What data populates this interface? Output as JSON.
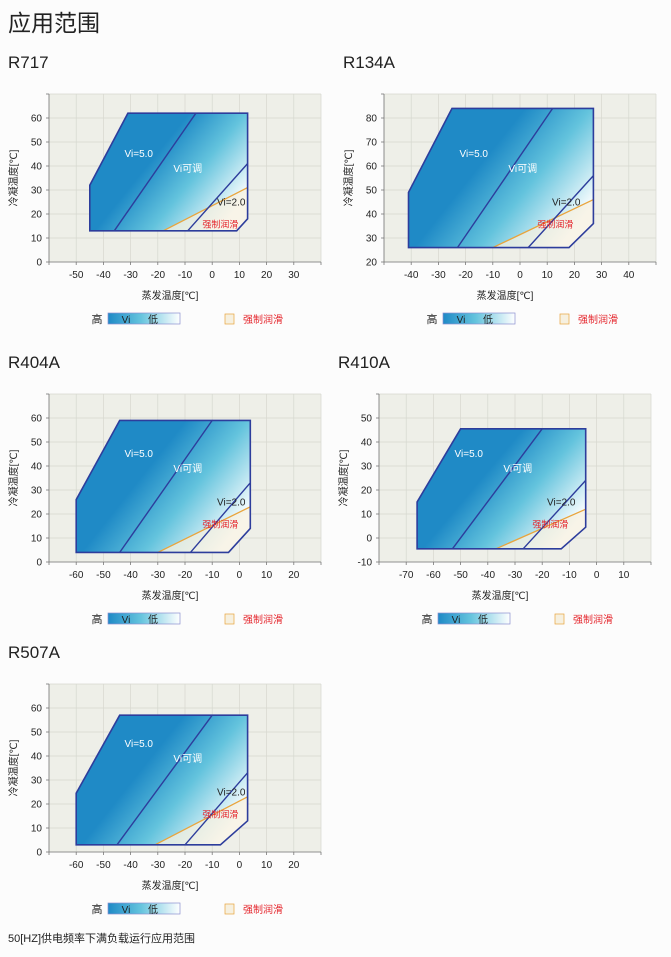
{
  "page_title": "应用范围",
  "footer": "50[HZ]供电频率下满负载运行应用范围",
  "colors": {
    "plot_bg": "#eeefe8",
    "grid": "#d6d7cf",
    "outline": "#2d3d9c",
    "vi_high": "#1f8ac6",
    "vi_mid": "#63c3dd",
    "vi_low": "#ffffff",
    "lube_line": "#e9a43c",
    "lube_fill": "#f6f0e0",
    "lube_text": "#e5262d"
  },
  "legend": {
    "high": "高",
    "vi": "Vi",
    "low": "低",
    "lube": "强制润滑"
  },
  "annotations": {
    "vi5": "Vi=5.0",
    "vi_adj": "Vi可调",
    "vi2": "Vi=2.0",
    "lube": "强制润滑"
  },
  "chart_data": [
    {
      "type": "area",
      "title": "R717",
      "xlabel": "蒸发温度[℃]",
      "ylabel": "冷凝温度[℃]",
      "grid": true,
      "xlim": [
        -60,
        40
      ],
      "ylim": [
        0,
        70
      ],
      "xticks": [
        -50,
        -40,
        -30,
        -20,
        -10,
        0,
        10,
        20,
        30
      ],
      "yticks": [
        0,
        10,
        20,
        30,
        40,
        50,
        60
      ],
      "envelope": [
        [
          -45,
          13
        ],
        [
          -45,
          32
        ],
        [
          -31,
          62
        ],
        [
          13,
          62
        ],
        [
          13,
          18
        ],
        [
          9,
          13
        ]
      ],
      "vi5_line": [
        [
          -36,
          13
        ],
        [
          -6,
          62
        ]
      ],
      "vi2_line": [
        [
          -9,
          13
        ],
        [
          13,
          41
        ]
      ],
      "lube_line": [
        [
          -18,
          13
        ],
        [
          13,
          31
        ]
      ]
    },
    {
      "type": "area",
      "title": "R134A",
      "xlabel": "蒸发温度[℃]",
      "ylabel": "冷凝温度[℃]",
      "grid": true,
      "xlim": [
        -50,
        50
      ],
      "ylim": [
        20,
        90
      ],
      "xticks": [
        -40,
        -30,
        -20,
        -10,
        0,
        10,
        20,
        30,
        40
      ],
      "yticks": [
        20,
        30,
        40,
        50,
        60,
        70,
        80
      ],
      "envelope": [
        [
          -41,
          26
        ],
        [
          -41,
          49
        ],
        [
          -25,
          84
        ],
        [
          27,
          84
        ],
        [
          27,
          36
        ],
        [
          18,
          26
        ]
      ],
      "vi5_line": [
        [
          -23,
          26
        ],
        [
          12,
          84
        ]
      ],
      "vi2_line": [
        [
          3,
          26
        ],
        [
          27,
          56
        ]
      ],
      "lube_line": [
        [
          -10,
          26
        ],
        [
          27,
          46
        ]
      ]
    },
    {
      "type": "area",
      "title": "R404A",
      "xlabel": "蒸发温度[℃]",
      "ylabel": "冷凝温度[℃]",
      "grid": true,
      "xlim": [
        -70,
        30
      ],
      "ylim": [
        0,
        70
      ],
      "xticks": [
        -60,
        -50,
        -40,
        -30,
        -20,
        -10,
        0,
        10,
        20
      ],
      "yticks": [
        0,
        10,
        20,
        30,
        40,
        50,
        60
      ],
      "envelope": [
        [
          -60,
          4
        ],
        [
          -60,
          26
        ],
        [
          -44,
          59
        ],
        [
          4,
          59
        ],
        [
          4,
          14
        ],
        [
          -4,
          4
        ]
      ],
      "vi5_line": [
        [
          -44,
          4
        ],
        [
          -10,
          59
        ]
      ],
      "vi2_line": [
        [
          -18,
          4
        ],
        [
          4,
          33
        ]
      ],
      "lube_line": [
        [
          -30,
          4
        ],
        [
          4,
          23
        ]
      ]
    },
    {
      "type": "area",
      "title": "R410A",
      "xlabel": "蒸发温度[℃]",
      "ylabel": "冷凝温度[℃]",
      "grid": true,
      "xlim": [
        -80,
        20
      ],
      "ylim": [
        -10,
        60
      ],
      "xticks": [
        -70,
        -60,
        -50,
        -40,
        -30,
        -20,
        -10,
        0,
        10
      ],
      "yticks": [
        -10,
        0,
        10,
        20,
        30,
        40,
        50
      ],
      "envelope": [
        [
          -66,
          -4.5
        ],
        [
          -66,
          15
        ],
        [
          -50,
          45.5
        ],
        [
          -4,
          45.5
        ],
        [
          -4,
          4.5
        ],
        [
          -13,
          -4.5
        ]
      ],
      "vi5_line": [
        [
          -53,
          -4.5
        ],
        [
          -20,
          45.5
        ]
      ],
      "vi2_line": [
        [
          -27,
          -4.5
        ],
        [
          -4,
          24
        ]
      ],
      "lube_line": [
        [
          -37,
          -4.5
        ],
        [
          -4,
          12
        ]
      ]
    },
    {
      "type": "area",
      "title": "R507A",
      "xlabel": "蒸发温度[℃]",
      "ylabel": "冷凝温度[℃]",
      "grid": true,
      "xlim": [
        -70,
        30
      ],
      "ylim": [
        0,
        70
      ],
      "xticks": [
        -60,
        -50,
        -40,
        -30,
        -20,
        -10,
        0,
        10,
        20
      ],
      "yticks": [
        0,
        10,
        20,
        30,
        40,
        50,
        60
      ],
      "envelope": [
        [
          -60,
          3
        ],
        [
          -60,
          24.5
        ],
        [
          -44,
          57
        ],
        [
          3,
          57
        ],
        [
          3,
          13
        ],
        [
          -7,
          3
        ]
      ],
      "vi5_line": [
        [
          -45,
          3
        ],
        [
          -10,
          57
        ]
      ],
      "vi2_line": [
        [
          -20,
          3
        ],
        [
          3,
          33
        ]
      ],
      "lube_line": [
        [
          -31,
          3
        ],
        [
          3,
          23
        ]
      ]
    }
  ]
}
